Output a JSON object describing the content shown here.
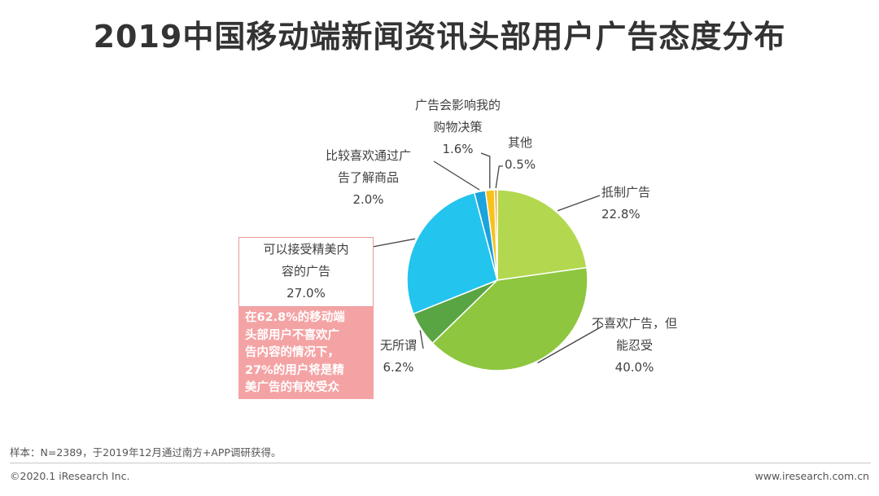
{
  "chart_data": {
    "type": "pie",
    "title": "2019中国移动端新闻资讯头部用户广告态度分布",
    "start": "top, clockwise",
    "slices": [
      {
        "name": "抵制广告",
        "label_lines": [
          "抵制广告"
        ],
        "value": 22.8,
        "value_label": "22.8%",
        "color": "#b3d84f"
      },
      {
        "name": "不喜欢广告，但能忍受",
        "label_lines": [
          "不喜欢广告，但",
          "能忍受"
        ],
        "value": 40.0,
        "value_label": "40.0%",
        "color": "#8ec63f"
      },
      {
        "name": "无所谓",
        "label_lines": [
          "无所谓"
        ],
        "value": 6.2,
        "value_label": "6.2%",
        "color": "#5aa543"
      },
      {
        "name": "可以接受精美内容的广告",
        "label_lines": [
          "可以接受精美内",
          "容的广告"
        ],
        "value": 27.0,
        "value_label": "27.0%",
        "color": "#23c4ee"
      },
      {
        "name": "比较喜欢通过广告了解商品",
        "label_lines": [
          "比较喜欢通过广",
          "告了解商品"
        ],
        "value": 2.0,
        "value_label": "2.0%",
        "color": "#1aa3dd"
      },
      {
        "name": "广告会影响我的购物决策",
        "label_lines": [
          "广告会影响我的",
          "购物决策"
        ],
        "value": 1.6,
        "value_label": "1.6%",
        "color": "#f7c21c"
      },
      {
        "name": "其他",
        "label_lines": [
          "其他"
        ],
        "value": 0.5,
        "value_label": "0.5%",
        "color": "#f2a21a"
      }
    ]
  },
  "callout": {
    "lines": [
      "在62.8%的移动端",
      "头部用户不喜欢广",
      "告内容的情况下，",
      "27%的用户将是精",
      "美广告的有效受众"
    ]
  },
  "footer": {
    "sample_note": "样本：N=2389，于2019年12月通过南方+APP调研获得。",
    "copyright": "©2020.1 iResearch Inc.",
    "website": "www.iresearch.com.cn"
  }
}
